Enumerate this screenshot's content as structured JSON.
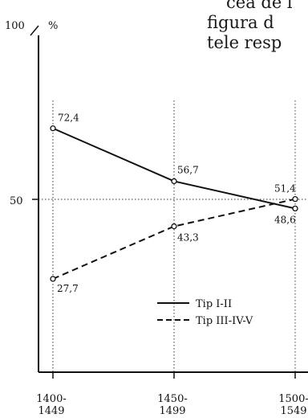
{
  "page_text": {
    "lines": [
      "cea de l",
      "figura d",
      "tele resp"
    ]
  },
  "chart_data": {
    "type": "line",
    "title": "",
    "xlabel": "",
    "ylabel": "%",
    "y_top_label": "100",
    "categories": [
      "1400-\n1449",
      "1450-\n1499",
      "1500-\n1549"
    ],
    "ylim": [
      0,
      100
    ],
    "yticks": [
      50,
      100
    ],
    "reference_line": 50,
    "legend_position": "center-right",
    "series": [
      {
        "name": "Tip I-II",
        "style": "solid",
        "values": [
          72.4,
          56.7,
          48.6
        ],
        "labels": [
          "72,4",
          "56,7",
          "48,6"
        ]
      },
      {
        "name": "Tip III-IV-V",
        "style": "dashed",
        "values": [
          27.7,
          43.3,
          51.4
        ],
        "labels": [
          "27,7",
          "43,3",
          "51,4"
        ]
      }
    ]
  }
}
